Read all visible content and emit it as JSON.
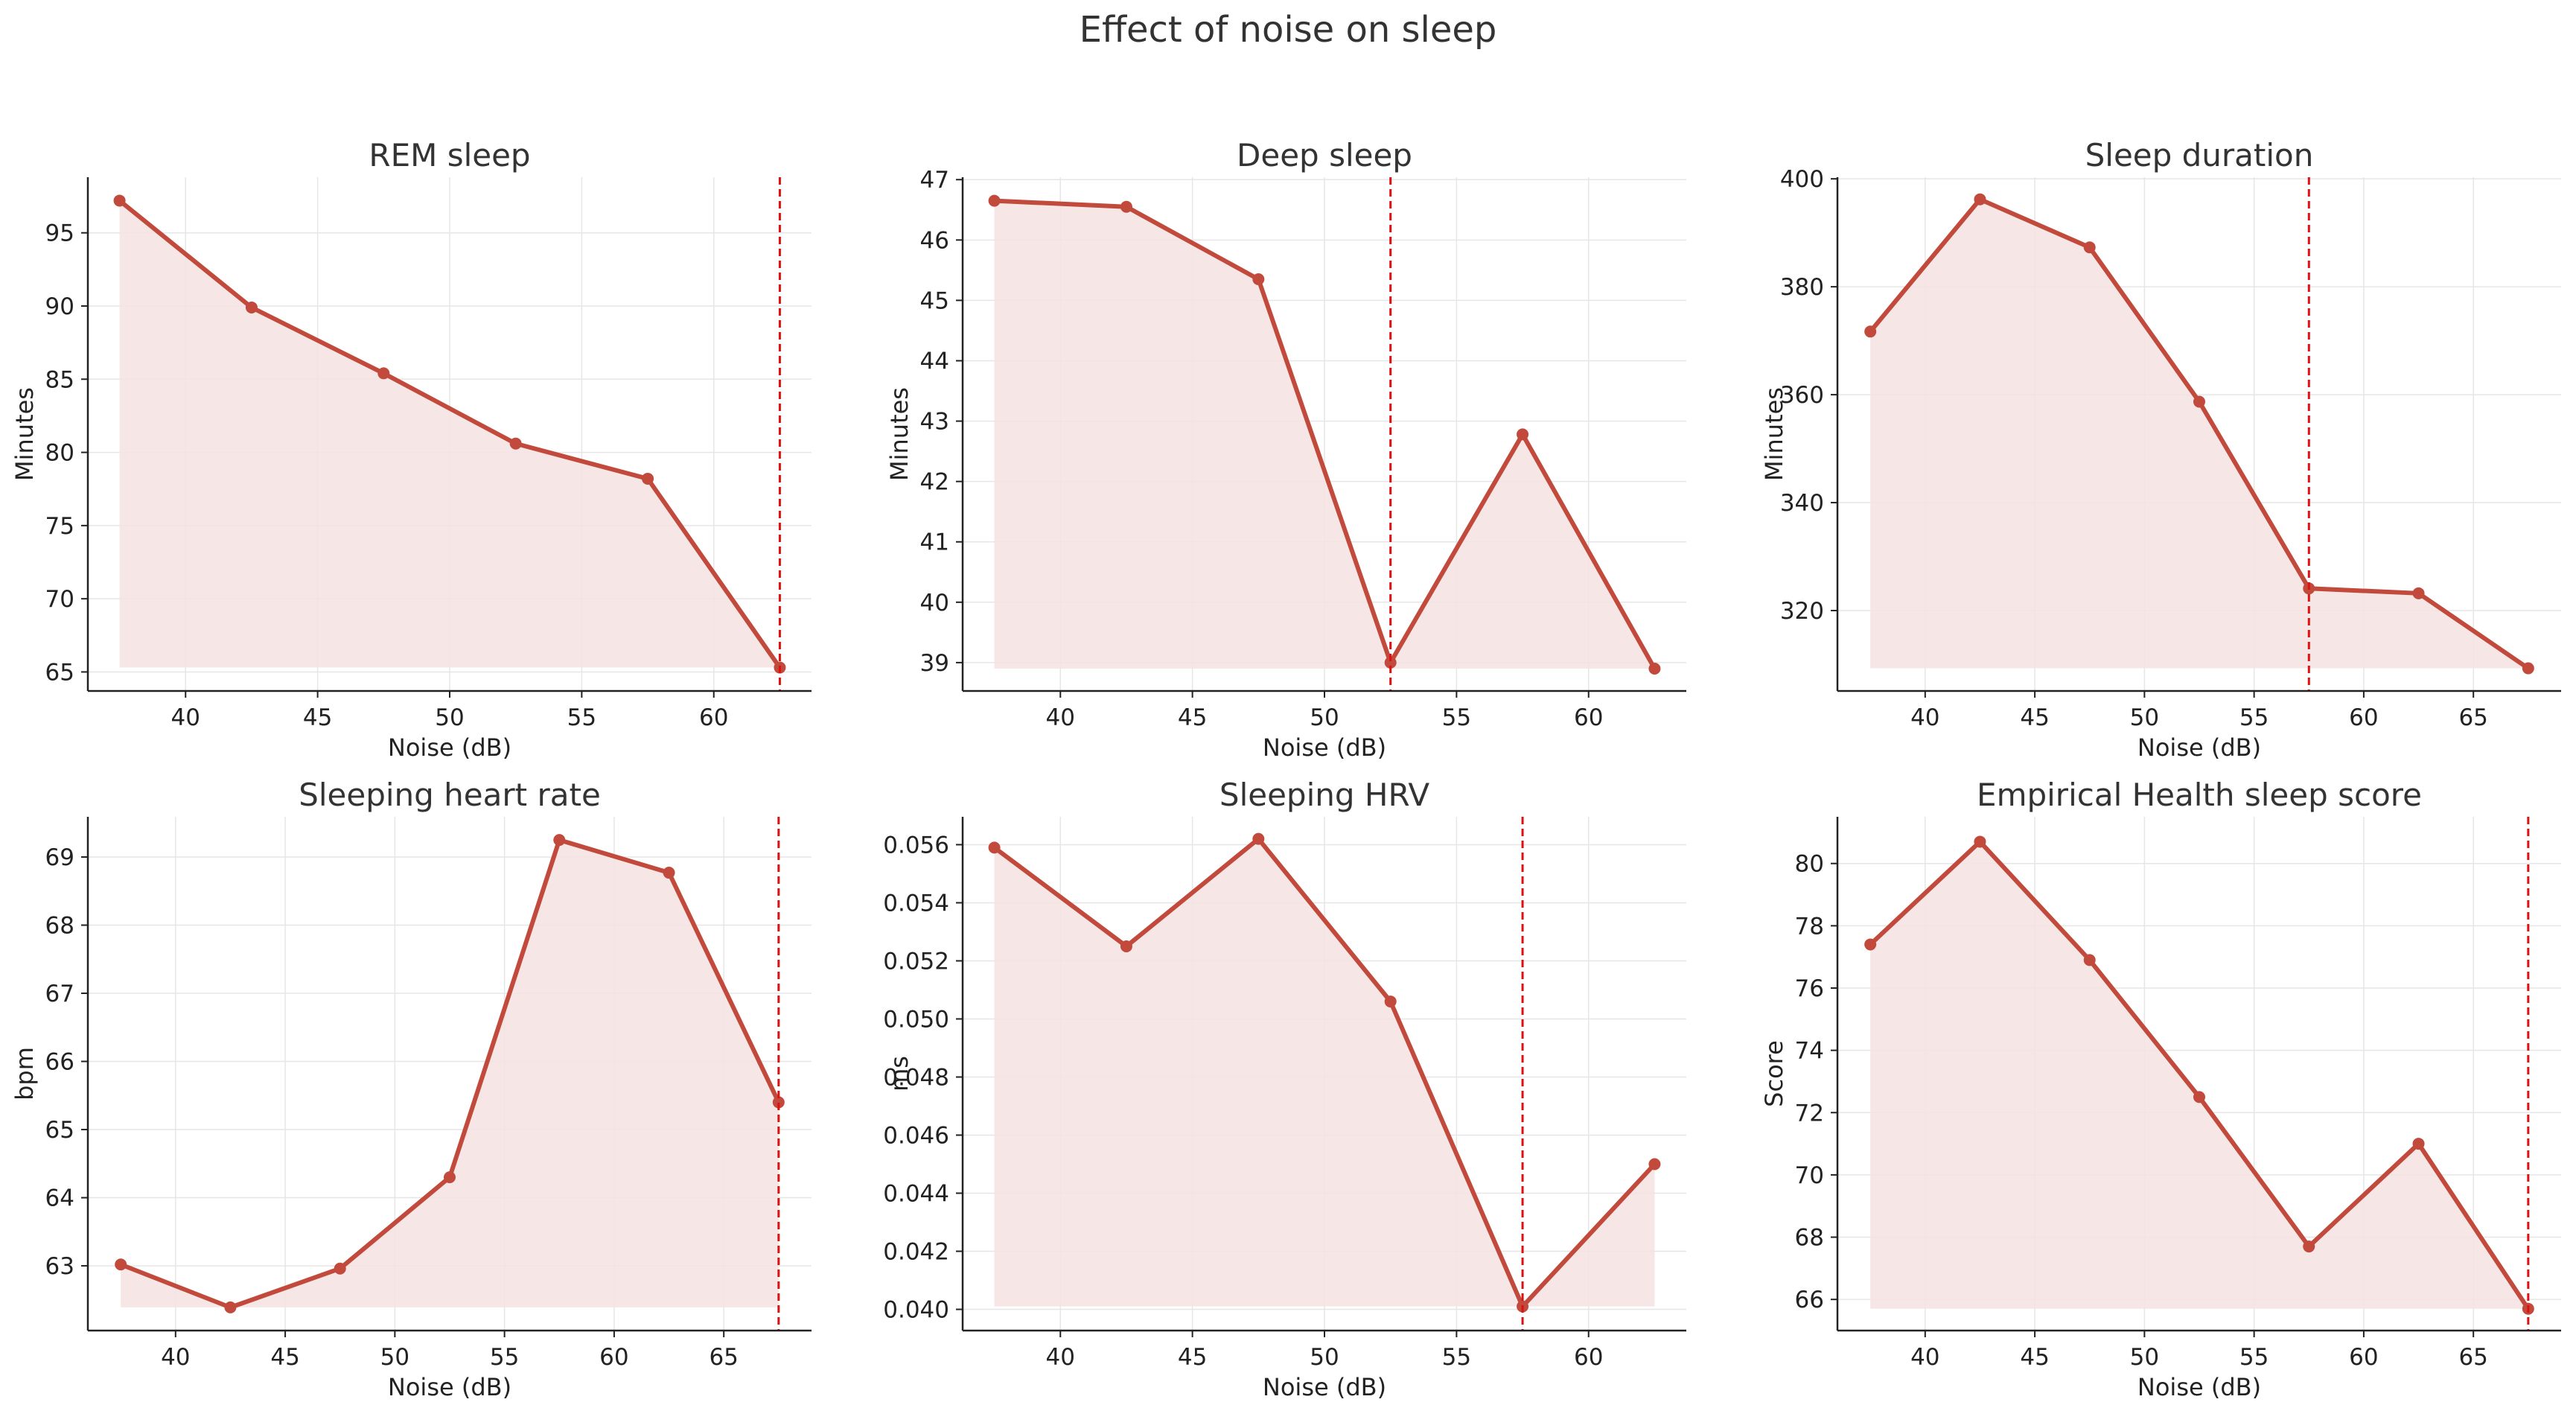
{
  "figure": {
    "title": "Effect of noise on sleep"
  },
  "style": {
    "line_color": "#c24a3c",
    "fill_color": "#f5e3e2",
    "marker_color": "#c24a3c",
    "vline_color": "#dd1111",
    "grid_color": "#e6e6e6",
    "axis_color": "#222222"
  },
  "chart_data": [
    {
      "type": "line",
      "title": "REM sleep",
      "xlabel": "Noise (dB)",
      "ylabel": "Minutes",
      "x": [
        37.5,
        42.5,
        47.5,
        52.5,
        57.5,
        62.5
      ],
      "y": [
        97.2,
        89.9,
        85.4,
        80.6,
        78.2,
        65.3
      ],
      "xlim": [
        36.3,
        63.7
      ],
      "ylim": [
        63.7,
        98.8
      ],
      "xticks": [
        40,
        45,
        50,
        55,
        60
      ],
      "yticks": [
        65,
        70,
        75,
        80,
        85,
        90,
        95
      ],
      "vline": 62.5,
      "grid": true
    },
    {
      "type": "line",
      "title": "Deep sleep",
      "xlabel": "Noise (dB)",
      "ylabel": "Minutes",
      "x": [
        37.5,
        42.5,
        47.5,
        52.5,
        57.5,
        62.5
      ],
      "y": [
        46.65,
        46.55,
        45.35,
        39.0,
        42.78,
        38.9
      ],
      "xlim": [
        36.3,
        63.7
      ],
      "ylim": [
        38.53,
        47.04
      ],
      "xticks": [
        40,
        45,
        50,
        55,
        60
      ],
      "yticks": [
        39,
        40,
        41,
        42,
        43,
        44,
        45,
        46,
        47
      ],
      "vline": 52.5,
      "grid": true
    },
    {
      "type": "line",
      "title": "Sleep duration",
      "xlabel": "Noise (dB)",
      "ylabel": "Minutes",
      "x": [
        37.5,
        42.5,
        47.5,
        52.5,
        57.5,
        62.5,
        67.5
      ],
      "y": [
        371.7,
        396.2,
        387.3,
        358.7,
        324.1,
        323.2,
        309.3
      ],
      "xlim": [
        36.0,
        69.0
      ],
      "ylim": [
        305.1,
        400.3
      ],
      "xticks": [
        40,
        45,
        50,
        55,
        60,
        65
      ],
      "yticks": [
        320,
        340,
        360,
        380,
        400
      ],
      "vline": 57.5,
      "grid": true
    },
    {
      "type": "line",
      "title": "Sleeping heart rate",
      "xlabel": "Noise (dB)",
      "ylabel": "bpm",
      "x": [
        37.5,
        42.5,
        47.5,
        52.5,
        57.5,
        62.5,
        67.5
      ],
      "y": [
        63.02,
        62.39,
        62.96,
        64.3,
        69.25,
        68.77,
        65.4
      ],
      "xlim": [
        36.0,
        69.0
      ],
      "ylim": [
        62.05,
        69.59
      ],
      "xticks": [
        40,
        45,
        50,
        55,
        60,
        65
      ],
      "yticks": [
        63,
        64,
        65,
        66,
        67,
        68,
        69
      ],
      "vline": 67.5,
      "grid": true
    },
    {
      "type": "line",
      "title": "Sleeping HRV",
      "xlabel": "Noise (dB)",
      "ylabel": "ms",
      "x": [
        37.5,
        42.5,
        47.5,
        52.5,
        57.5,
        62.5
      ],
      "y": [
        0.0559,
        0.0525,
        0.0562,
        0.0506,
        0.0401,
        0.045
      ],
      "xlim": [
        36.3,
        63.7
      ],
      "ylim": [
        0.03927,
        0.05696
      ],
      "xticks": [
        40,
        45,
        50,
        55,
        60
      ],
      "yticks": [
        0.04,
        0.042,
        0.044,
        0.046,
        0.048,
        0.05,
        0.052,
        0.054,
        0.056
      ],
      "ytick_labels": [
        "0.040",
        "0.042",
        "0.044",
        "0.046",
        "0.048",
        "0.050",
        "0.052",
        "0.054",
        "0.056"
      ],
      "vline": 57.5,
      "grid": true
    },
    {
      "type": "line",
      "title": "Empirical Health sleep score",
      "xlabel": "Noise (dB)",
      "ylabel": "Score",
      "x": [
        37.5,
        42.5,
        47.5,
        52.5,
        57.5,
        62.5,
        67.5
      ],
      "y": [
        77.4,
        80.7,
        76.9,
        72.5,
        67.7,
        71.0,
        65.7
      ],
      "xlim": [
        36.0,
        69.0
      ],
      "ylim": [
        65.0,
        81.5
      ],
      "xticks": [
        40,
        45,
        50,
        55,
        60,
        65
      ],
      "yticks": [
        66,
        68,
        70,
        72,
        74,
        76,
        78,
        80
      ],
      "vline": 67.5,
      "grid": true
    }
  ]
}
